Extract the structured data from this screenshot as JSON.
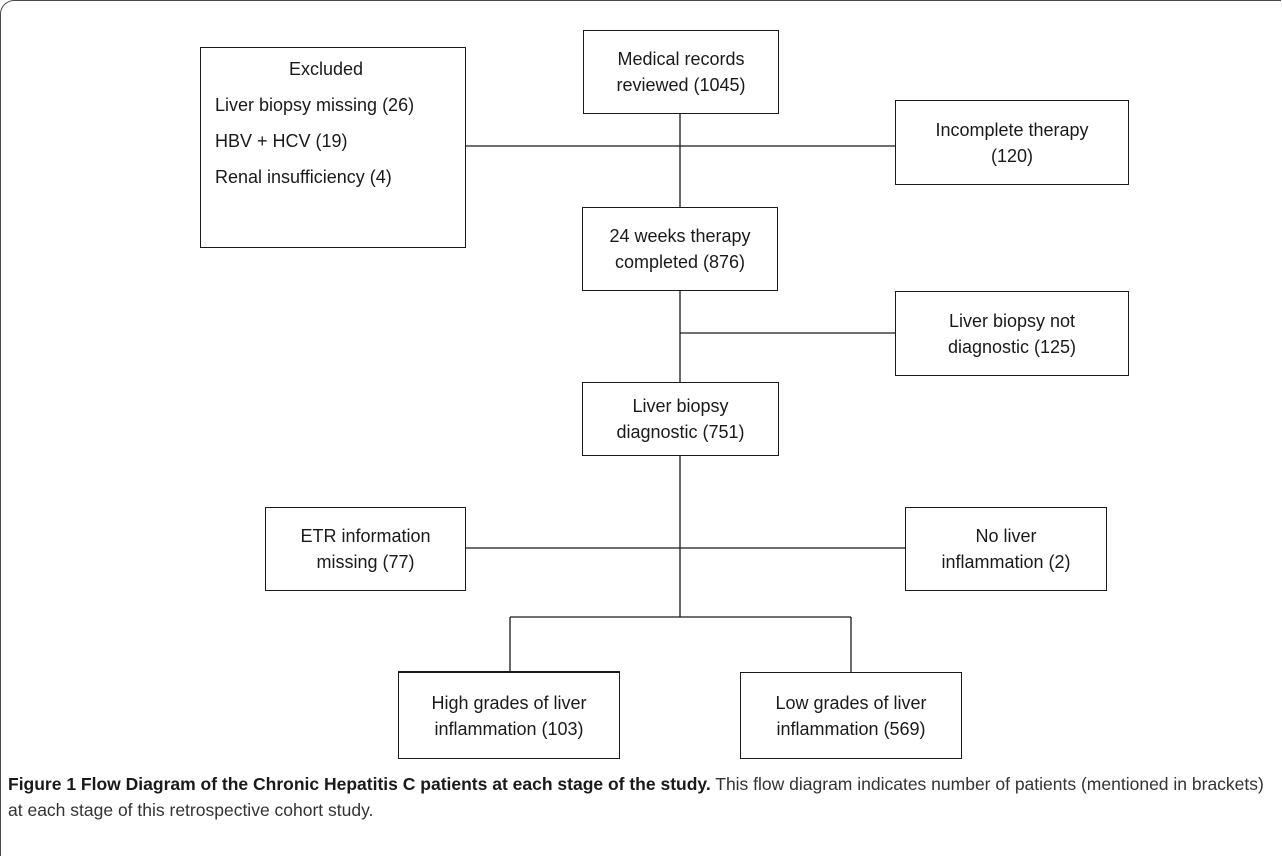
{
  "boxes": {
    "medical_records": [
      "Medical records",
      "reviewed (1045)"
    ],
    "excluded": {
      "heading": "Excluded",
      "items": [
        "Liver biopsy missing (26)",
        "HBV + HCV (19)",
        "Renal insufficiency (4)"
      ]
    },
    "incomplete_therapy": [
      "Incomplete therapy",
      "(120)"
    ],
    "therapy_completed": [
      "24 weeks therapy",
      "completed (876)"
    ],
    "biopsy_not_diagnostic": [
      "Liver biopsy not",
      "diagnostic (125)"
    ],
    "biopsy_diagnostic": [
      "Liver biopsy",
      "diagnostic (751)"
    ],
    "etr_missing": [
      "ETR information",
      "missing (77)"
    ],
    "no_inflammation": [
      "No liver",
      "inflammation (2)"
    ],
    "high_grades": [
      "High grades of liver",
      "inflammation (103)"
    ],
    "low_grades": [
      "Low grades of liver",
      "inflammation (569)"
    ]
  },
  "caption": {
    "title": "Figure 1 Flow Diagram of the Chronic Hepatitis C patients at each stage of the study.",
    "text": "This flow diagram indicates number of patients (mentioned in brackets) at each stage of this retrospective cohort study."
  }
}
